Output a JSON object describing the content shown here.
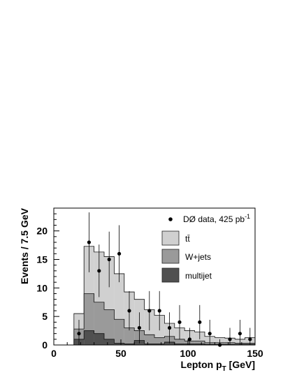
{
  "chart_data": {
    "type": "bar",
    "xlabel": "Lepton p",
    "xlabel_sub": "T",
    "xlabel_unit": " [GeV]",
    "ylabel": "Events / 7.5 GeV",
    "xlim": [
      0,
      150
    ],
    "ylim": [
      0,
      24
    ],
    "x_ticks": [
      0,
      50,
      100,
      150
    ],
    "y_ticks": [
      0,
      5,
      10,
      15,
      20
    ],
    "bin_edges": [
      15,
      22.5,
      30,
      37.5,
      45,
      52.5,
      60,
      67.5,
      75,
      82.5,
      90,
      97.5,
      105,
      112.5,
      120,
      127.5,
      135,
      142.5,
      150
    ],
    "legend": {
      "data_label": "DØ data, 425 pb",
      "data_label_sup": "-1",
      "ttbar": "tt̄",
      "wjets": "W+jets",
      "multijet": "multijet"
    },
    "colors": {
      "ttbar": "#d0d0d0",
      "wjets": "#9a9a9a",
      "multijet": "#505050"
    },
    "series": [
      {
        "name": "multijet",
        "values": [
          1.0,
          2.5,
          2.0,
          1.0,
          0.3,
          0.2,
          0.8,
          0.2,
          0.2,
          0.5,
          0.2,
          0.2,
          0.2,
          0.1,
          0.1,
          0.1,
          0.1,
          0.1
        ]
      },
      {
        "name": "W+jets",
        "values": [
          2.8,
          9.0,
          7.5,
          6.2,
          4.5,
          3.0,
          2.5,
          1.8,
          1.3,
          1.5,
          1.0,
          0.7,
          0.7,
          0.4,
          0.4,
          0.4,
          0.3,
          0.3
        ]
      },
      {
        "name": "tt̄",
        "values": [
          5.5,
          17.3,
          16.3,
          15.5,
          12.5,
          9.3,
          8.0,
          6.2,
          5.2,
          3.8,
          3.0,
          2.5,
          2.3,
          1.5,
          1.3,
          1.2,
          1.0,
          1.3
        ]
      }
    ],
    "data_points": {
      "x": [
        18.75,
        26.25,
        33.75,
        41.25,
        48.75,
        56.25,
        63.75,
        71.25,
        78.75,
        86.25,
        93.75,
        101.25,
        108.75,
        116.25,
        123.75,
        131.25,
        138.75,
        146.25
      ],
      "y": [
        2,
        18,
        13,
        15,
        16,
        6,
        3,
        6,
        6,
        3,
        4,
        1,
        4,
        2,
        0,
        1,
        2,
        1
      ]
    }
  }
}
